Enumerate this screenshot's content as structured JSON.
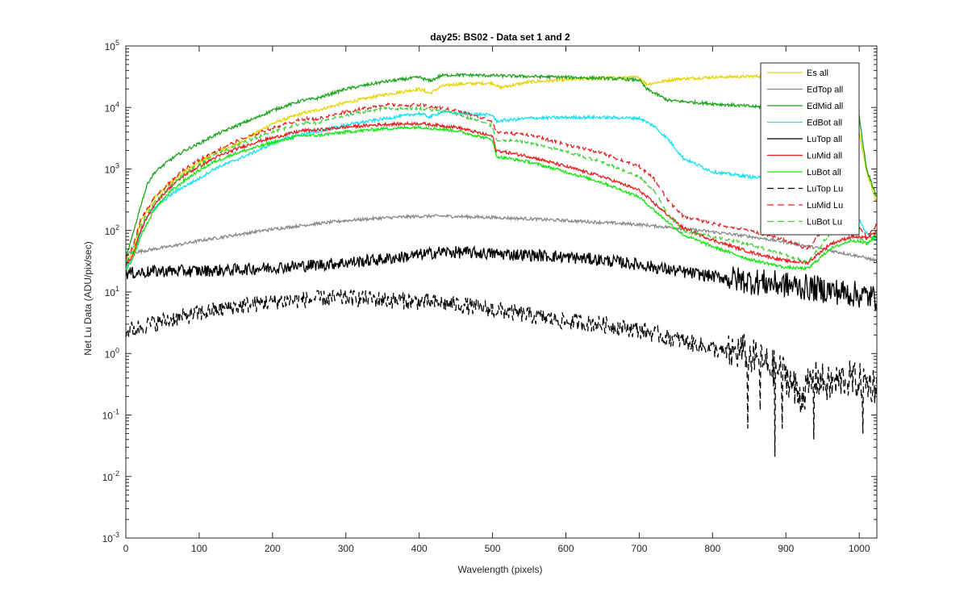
{
  "chart_data": {
    "type": "line",
    "title": "day25: BS02 - Data set 1 and 2",
    "xlabel": "Wavelength (pixels)",
    "ylabel": "Net Lu Data (ADU/pix/sec)",
    "xlim": [
      0,
      1024
    ],
    "ylim": [
      0.001,
      100000
    ],
    "yscale": "log",
    "grid": false,
    "legend_position": "top-right",
    "x_ticks": [
      0,
      100,
      200,
      300,
      400,
      500,
      600,
      700,
      800,
      900,
      1000
    ],
    "y_ticks": [
      {
        "value": 0.001,
        "base": "10",
        "exp": "-3"
      },
      {
        "value": 0.01,
        "base": "10",
        "exp": "-2"
      },
      {
        "value": 0.1,
        "base": "10",
        "exp": "-1"
      },
      {
        "value": 1,
        "base": "10",
        "exp": "0"
      },
      {
        "value": 10,
        "base": "10",
        "exp": "1"
      },
      {
        "value": 100,
        "base": "10",
        "exp": "2"
      },
      {
        "value": 1000,
        "base": "10",
        "exp": "3"
      },
      {
        "value": 10000,
        "base": "10",
        "exp": "4"
      },
      {
        "value": 100000,
        "base": "10",
        "exp": "5"
      }
    ],
    "series": [
      {
        "name": "Es  all",
        "color": "#e6d400",
        "dash": "solid",
        "x": [
          0,
          10,
          20,
          40,
          60,
          80,
          100,
          120,
          150,
          180,
          200,
          240,
          260,
          300,
          350,
          400,
          415,
          430,
          450,
          500,
          510,
          550,
          600,
          650,
          700,
          710,
          720,
          750,
          800,
          850,
          900,
          950,
          990,
          1000,
          1010,
          1024
        ],
        "y": [
          30,
          45,
          140,
          350,
          600,
          900,
          1300,
          1800,
          2500,
          4000,
          5500,
          8000,
          9000,
          12000,
          16000,
          20000,
          17000,
          22000,
          24000,
          25000,
          21000,
          26000,
          28000,
          30000,
          31000,
          24000,
          25000,
          29000,
          31000,
          32000,
          33000,
          33000,
          30000,
          4000,
          900,
          280
        ]
      },
      {
        "name": "EdTop  all",
        "color": "#8a8a8a",
        "dash": "solid",
        "x": [
          0,
          30,
          60,
          100,
          150,
          200,
          250,
          300,
          350,
          400,
          430,
          460,
          500,
          550,
          600,
          650,
          700,
          750,
          800,
          850,
          900,
          950,
          1000,
          1024
        ],
        "y": [
          42,
          48,
          55,
          68,
          85,
          105,
          125,
          145,
          160,
          170,
          172,
          168,
          163,
          155,
          145,
          135,
          125,
          110,
          95,
          80,
          65,
          50,
          38,
          32
        ]
      },
      {
        "name": "EdMid  all",
        "color": "#1aa51a",
        "dash": "solid",
        "x": [
          0,
          10,
          20,
          30,
          40,
          60,
          80,
          100,
          120,
          150,
          180,
          200,
          240,
          260,
          300,
          350,
          400,
          415,
          430,
          450,
          500,
          550,
          600,
          650,
          700,
          710,
          740,
          800,
          850,
          900,
          950,
          1000,
          1010,
          1024
        ],
        "y": [
          35,
          90,
          250,
          600,
          900,
          1400,
          2000,
          2600,
          3500,
          5000,
          7000,
          9000,
          13000,
          14000,
          20000,
          26000,
          31000,
          27000,
          33000,
          34000,
          33000,
          32000,
          31000,
          30000,
          28000,
          20000,
          13000,
          11500,
          10500,
          9500,
          8500,
          7000,
          1000,
          350
        ]
      },
      {
        "name": "EdBot  all",
        "color": "#14e1f0",
        "dash": "solid",
        "x": [
          0,
          10,
          20,
          30,
          50,
          70,
          100,
          120,
          150,
          180,
          200,
          230,
          260,
          300,
          350,
          400,
          415,
          430,
          450,
          500,
          505,
          550,
          600,
          650,
          700,
          720,
          740,
          760,
          800,
          850,
          900,
          950,
          980,
          990,
          1000,
          1010,
          1024
        ],
        "y": [
          25,
          40,
          90,
          180,
          300,
          450,
          700,
          1000,
          1400,
          2000,
          2600,
          3500,
          4000,
          5200,
          6500,
          8000,
          7000,
          8500,
          8200,
          7500,
          6000,
          6700,
          6900,
          6900,
          6700,
          5000,
          3000,
          1500,
          900,
          750,
          650,
          560,
          800,
          300,
          150,
          90,
          70
        ]
      },
      {
        "name": "LuTop  all",
        "color": "#000000",
        "dash": "solid",
        "noise": 0.1,
        "x": [
          0,
          50,
          100,
          150,
          200,
          250,
          300,
          350,
          400,
          430,
          460,
          500,
          550,
          600,
          650,
          700,
          750,
          800,
          850,
          900,
          950,
          1000,
          1024
        ],
        "y": [
          20,
          22,
          22,
          23,
          25,
          27,
          30,
          34,
          40,
          45,
          44,
          42,
          40,
          37,
          33,
          28,
          22,
          18,
          15,
          13,
          11,
          9,
          8
        ]
      },
      {
        "name": "LuMid  all",
        "color": "#e61e1e",
        "dash": "solid",
        "x": [
          0,
          10,
          20,
          40,
          60,
          80,
          100,
          120,
          150,
          180,
          200,
          240,
          260,
          300,
          350,
          400,
          450,
          500,
          505,
          550,
          600,
          650,
          700,
          730,
          760,
          800,
          850,
          900,
          930,
          960,
          990,
          1010,
          1024
        ],
        "y": [
          28,
          40,
          100,
          280,
          500,
          800,
          1100,
          1500,
          2100,
          2800,
          3200,
          4200,
          4300,
          4800,
          5300,
          5500,
          4800,
          3400,
          2000,
          1600,
          1100,
          750,
          450,
          220,
          110,
          70,
          45,
          32,
          30,
          60,
          80,
          75,
          95
        ]
      },
      {
        "name": "LuBot  all",
        "color": "#14e614",
        "dash": "solid",
        "x": [
          0,
          10,
          20,
          40,
          60,
          80,
          100,
          120,
          150,
          180,
          200,
          240,
          260,
          300,
          350,
          400,
          450,
          500,
          505,
          550,
          600,
          650,
          700,
          730,
          760,
          800,
          850,
          900,
          930,
          960,
          990,
          1010,
          1024
        ],
        "y": [
          22,
          35,
          80,
          230,
          420,
          650,
          950,
          1300,
          1800,
          2300,
          2700,
          3500,
          3500,
          4000,
          4500,
          4800,
          4200,
          3000,
          1600,
          1300,
          900,
          600,
          350,
          170,
          85,
          55,
          34,
          25,
          24,
          50,
          70,
          62,
          80
        ]
      },
      {
        "name": "LuTop  Lu",
        "color": "#000000",
        "dash": "8,5",
        "noise": 0.14,
        "x": [
          0,
          30,
          60,
          100,
          150,
          200,
          250,
          300,
          350,
          400,
          450,
          500,
          550,
          600,
          650,
          700,
          750,
          800,
          820,
          840,
          860,
          880,
          900,
          920,
          940,
          960,
          980,
          1000,
          1024
        ],
        "y": [
          2.3,
          2.9,
          3.6,
          4.5,
          5.8,
          7,
          7.6,
          8,
          7.5,
          7,
          6.3,
          5.2,
          4.2,
          3.3,
          3,
          2.4,
          1.7,
          1.2,
          1.0,
          1.1,
          0.8,
          0.6,
          0.45,
          0.2,
          0.4,
          0.3,
          0.4,
          0.35,
          0.3
        ],
        "dips": [
          [
            885,
            0.021
          ],
          [
            895,
            0.06
          ],
          [
            848,
            0.06
          ],
          [
            938,
            0.04
          ],
          [
            1005,
            0.05
          ],
          [
            865,
            0.12
          ],
          [
            912,
            0.15
          ]
        ]
      },
      {
        "name": "LuMid  Lu",
        "color": "#e61e1e",
        "dash": "8,5",
        "x": [
          0,
          10,
          20,
          40,
          60,
          80,
          100,
          120,
          150,
          180,
          200,
          240,
          260,
          300,
          350,
          400,
          450,
          500,
          505,
          550,
          600,
          650,
          700,
          720,
          740,
          760,
          800,
          850,
          900,
          930,
          960,
          990,
          1010,
          1024
        ],
        "y": [
          35,
          55,
          150,
          350,
          600,
          1000,
          1400,
          1900,
          2800,
          3800,
          4600,
          6500,
          6500,
          8500,
          11000,
          11000,
          9000,
          6000,
          4000,
          3600,
          2500,
          1800,
          1100,
          700,
          300,
          170,
          130,
          100,
          70,
          50,
          150,
          160,
          80,
          125
        ]
      },
      {
        "name": "LuBot  Lu",
        "color": "#3cd232",
        "dash": "8,5",
        "x": [
          0,
          10,
          20,
          40,
          60,
          80,
          100,
          120,
          150,
          180,
          200,
          240,
          260,
          300,
          350,
          400,
          450,
          500,
          505,
          550,
          600,
          650,
          700,
          720,
          740,
          760,
          800,
          850,
          900,
          930,
          960,
          990,
          1010,
          1024
        ],
        "y": [
          30,
          48,
          120,
          300,
          520,
          850,
          1200,
          1650,
          2400,
          3300,
          4000,
          5600,
          5600,
          7500,
          9500,
          9800,
          8000,
          5000,
          3000,
          2700,
          1900,
          1300,
          750,
          450,
          180,
          100,
          80,
          60,
          40,
          30,
          90,
          105,
          60,
          90
        ]
      }
    ]
  }
}
